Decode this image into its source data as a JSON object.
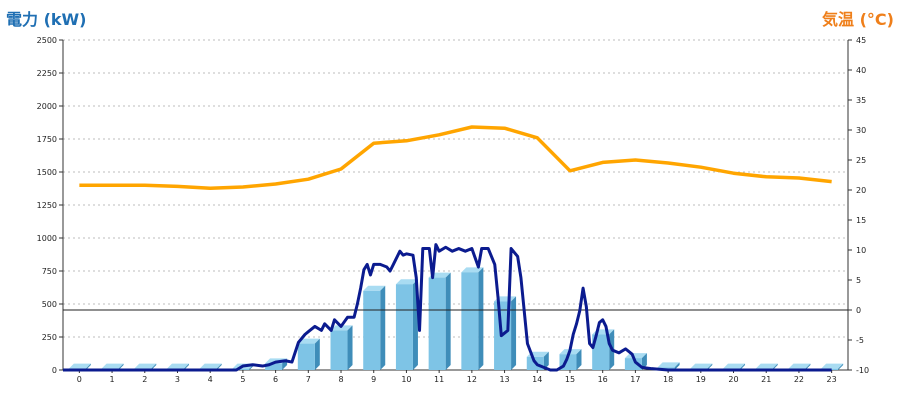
{
  "chart_data": {
    "type": "bar",
    "left_axis_label": "電力 (kW)",
    "right_axis_label": "気温 (°C)",
    "categories": [
      "0",
      "1",
      "2",
      "3",
      "4",
      "5",
      "6",
      "7",
      "8",
      "9",
      "10",
      "11",
      "12",
      "13",
      "14",
      "15",
      "16",
      "17",
      "18",
      "19",
      "20",
      "21",
      "22",
      "23"
    ],
    "y_left": {
      "min": 0,
      "max": 2500,
      "ticks": [
        0,
        250,
        500,
        750,
        1000,
        1250,
        1500,
        1750,
        2000,
        2250,
        2500
      ]
    },
    "y_right": {
      "min": -10,
      "max": 45,
      "ticks": [
        -10,
        -5,
        0,
        5,
        10,
        15,
        20,
        25,
        30,
        35,
        40,
        45
      ]
    },
    "grid": "dotted-horizontal",
    "colors": {
      "bars": "#7ec4e6",
      "bar_dark": "#3f8db9",
      "temperature": "#ffa500",
      "power_line": "#0b1b8f",
      "left_title": "#1f6fb3",
      "right_title": "#ef7f1a"
    },
    "series": [
      {
        "axis": "left",
        "kind": "bar",
        "values": [
          10,
          10,
          10,
          10,
          10,
          10,
          50,
          200,
          300,
          600,
          650,
          700,
          740,
          520,
          100,
          120,
          270,
          90,
          20,
          10,
          10,
          10,
          10,
          10
        ]
      },
      {
        "axis": "left",
        "kind": "line",
        "x": [
          4.8,
          5.0,
          5.3,
          5.6,
          5.8,
          6.0,
          6.3,
          6.5,
          6.7,
          6.9,
          7.0,
          7.2,
          7.4,
          7.5,
          7.7,
          7.8,
          8.0,
          8.2,
          8.4,
          8.5,
          8.6,
          8.7,
          8.8,
          8.9,
          9.0,
          9.2,
          9.4,
          9.5,
          9.6,
          9.8,
          9.9,
          10.0,
          10.2,
          10.3,
          10.4,
          10.5,
          10.6,
          10.7,
          10.8,
          10.9,
          11.0,
          11.2,
          11.4,
          11.6,
          11.8,
          12.0,
          12.2,
          12.3,
          12.5,
          12.7,
          12.8,
          12.9,
          13.0,
          13.1,
          13.2,
          13.4,
          13.5,
          13.7,
          13.9,
          14.0,
          14.2,
          14.4,
          14.6,
          14.8,
          14.9,
          15.0,
          15.1,
          15.2,
          15.3,
          15.4,
          15.5,
          15.6,
          15.7,
          15.8,
          15.9,
          16.0,
          16.1,
          16.2,
          16.3,
          16.5,
          16.7,
          16.9,
          17.0,
          17.2,
          17.5,
          18.0,
          19.0,
          20.0,
          21.0,
          22.0,
          23.0
        ],
        "values": [
          0,
          30,
          40,
          30,
          40,
          60,
          70,
          60,
          210,
          270,
          290,
          330,
          300,
          350,
          300,
          380,
          330,
          400,
          400,
          500,
          620,
          760,
          800,
          720,
          800,
          800,
          780,
          750,
          800,
          900,
          870,
          880,
          870,
          700,
          300,
          920,
          920,
          920,
          700,
          950,
          900,
          930,
          900,
          920,
          900,
          920,
          780,
          920,
          920,
          800,
          550,
          260,
          280,
          300,
          920,
          860,
          700,
          200,
          70,
          40,
          20,
          0,
          0,
          30,
          80,
          150,
          270,
          350,
          450,
          620,
          480,
          200,
          170,
          260,
          360,
          380,
          330,
          200,
          150,
          130,
          160,
          120,
          60,
          20,
          10,
          0,
          0,
          0,
          0,
          0,
          0
        ]
      },
      {
        "axis": "right",
        "kind": "line",
        "values": [
          20.8,
          20.8,
          20.8,
          20.6,
          20.3,
          20.5,
          21.0,
          21.8,
          23.5,
          27.8,
          28.2,
          29.2,
          30.5,
          30.3,
          28.7,
          23.2,
          24.6,
          25.0,
          24.5,
          23.8,
          22.8,
          22.2,
          22.0,
          21.4
        ]
      }
    ]
  }
}
